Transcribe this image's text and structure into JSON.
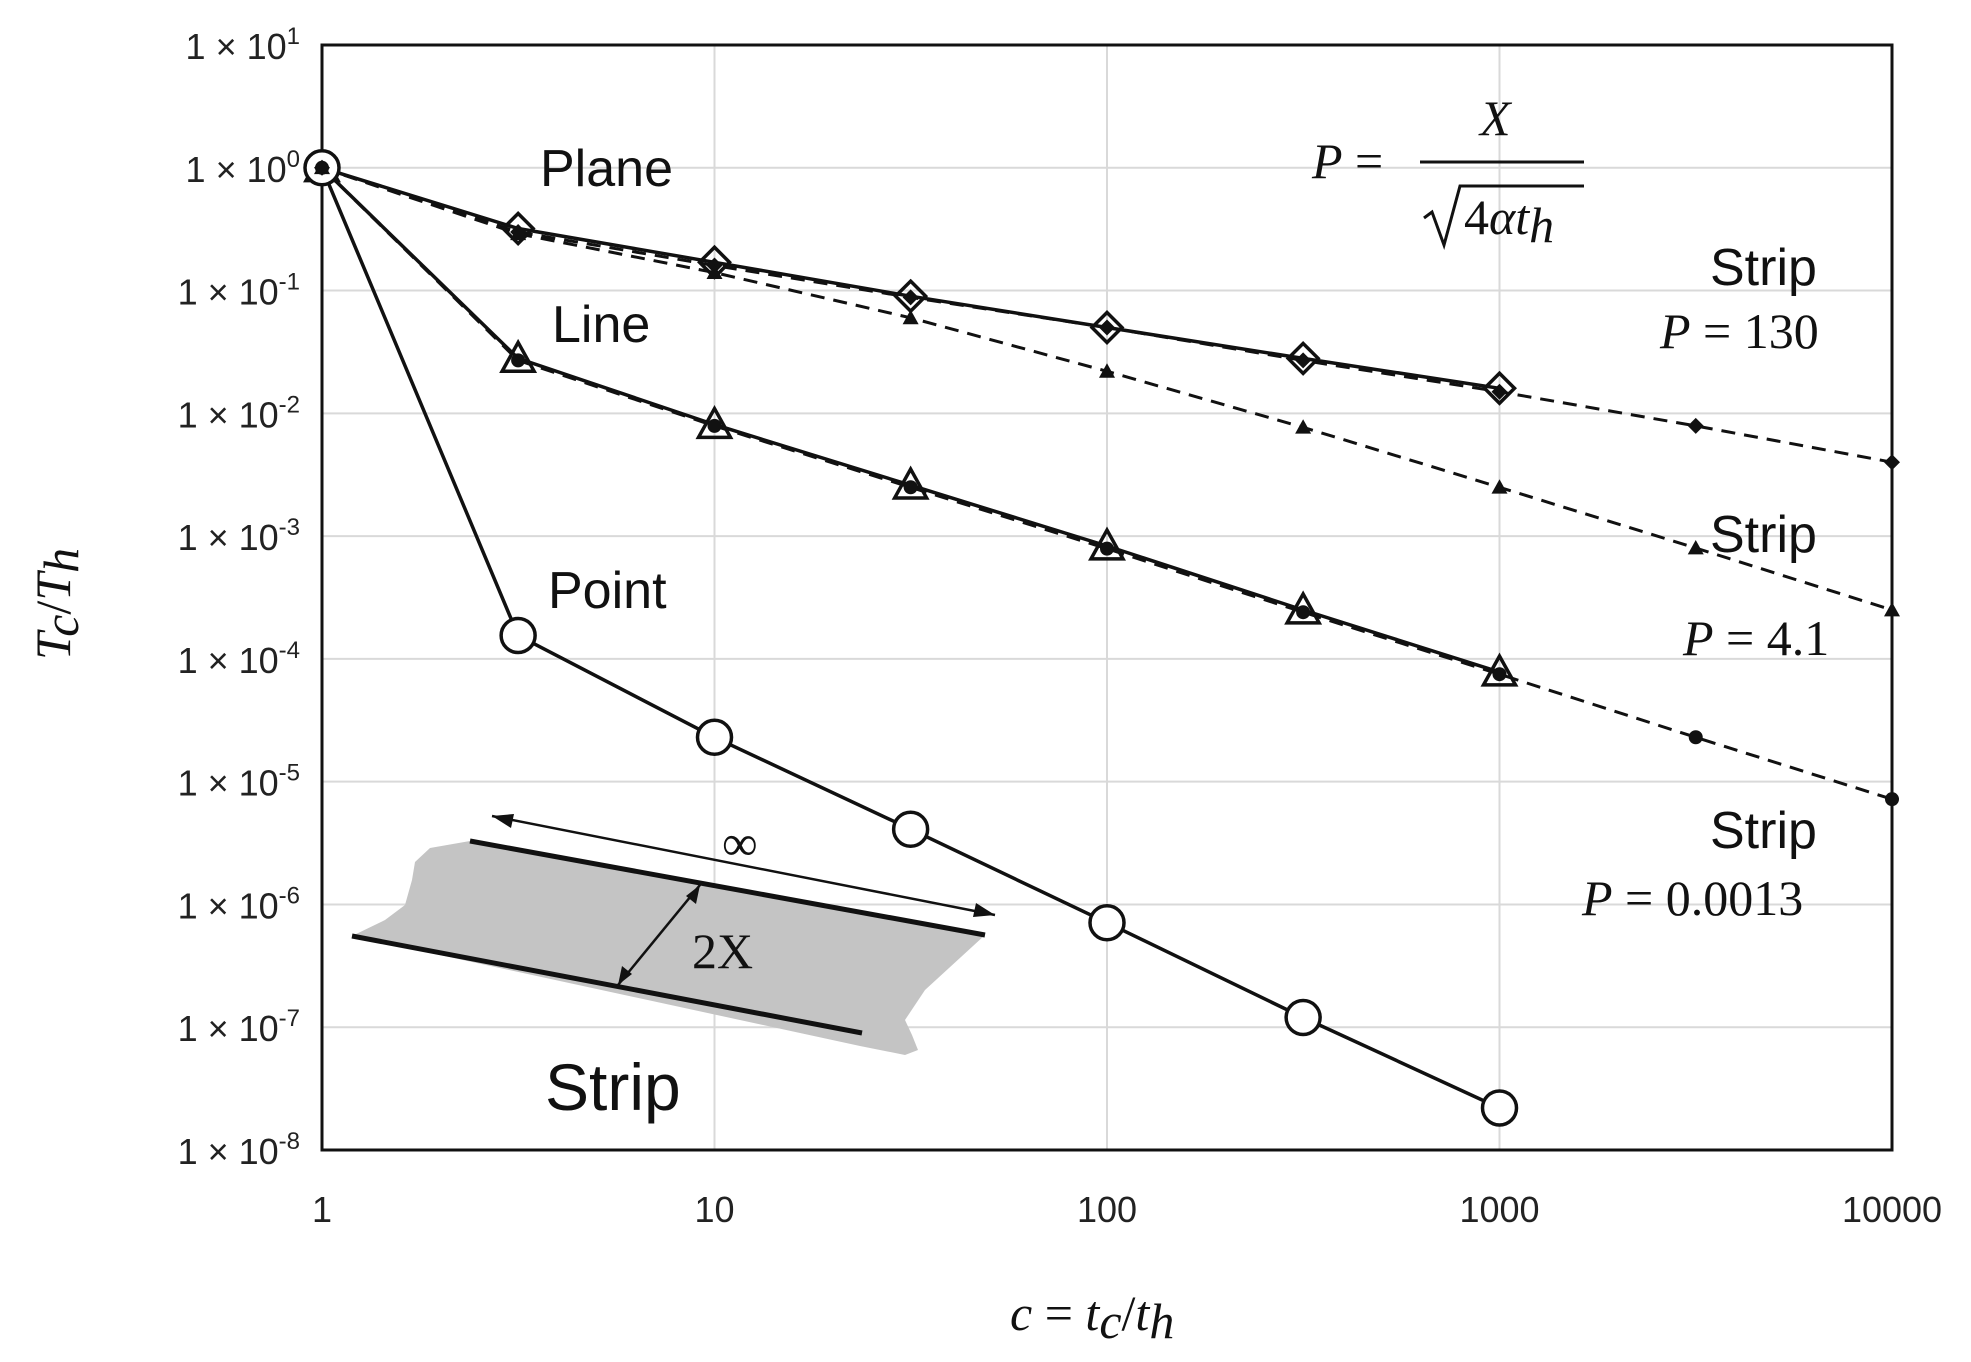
{
  "chart_data": {
    "type": "line",
    "xscale": "log",
    "yscale": "log",
    "xlim": [
      1,
      10000
    ],
    "ylim": [
      1e-08,
      10
    ],
    "grid": true,
    "xlabel_parts": {
      "lhs": "c",
      "eq": " = ",
      "num": "t",
      "num_sub": "c",
      "slash": "/",
      "den": "t",
      "den_sub": "h"
    },
    "ylabel_parts": {
      "num": "T",
      "num_sub": "c",
      "slash": "/",
      "den": "T",
      "den_sub": "h"
    },
    "x_ticks": [
      {
        "value": 1,
        "label": "1"
      },
      {
        "value": 10,
        "label": "10"
      },
      {
        "value": 100,
        "label": "100"
      },
      {
        "value": 1000,
        "label": "1000"
      },
      {
        "value": 10000,
        "label": "10000"
      }
    ],
    "y_ticks": [
      {
        "value": 10,
        "mant": "1",
        "times": "×",
        "base": "10",
        "exp": "1"
      },
      {
        "value": 1,
        "mant": "1",
        "times": "×",
        "base": "10",
        "exp": "0"
      },
      {
        "value": 0.1,
        "mant": "1",
        "times": "×",
        "base": "10",
        "exp": "-1"
      },
      {
        "value": 0.01,
        "mant": "1",
        "times": "×",
        "base": "10",
        "exp": "-2"
      },
      {
        "value": 0.001,
        "mant": "1",
        "times": "×",
        "base": "10",
        "exp": "-3"
      },
      {
        "value": 0.0001,
        "mant": "1",
        "times": "×",
        "base": "10",
        "exp": "-4"
      },
      {
        "value": 1e-05,
        "mant": "1",
        "times": "×",
        "base": "10",
        "exp": "-5"
      },
      {
        "value": 1e-06,
        "mant": "1",
        "times": "×",
        "base": "10",
        "exp": "-6"
      },
      {
        "value": 1e-07,
        "mant": "1",
        "times": "×",
        "base": "10",
        "exp": "-7"
      },
      {
        "value": 1e-08,
        "mant": "1",
        "times": "×",
        "base": "10",
        "exp": "-8"
      }
    ],
    "series": [
      {
        "style": "solid",
        "marker": "open-diamond",
        "x": [
          1,
          3.16,
          10,
          31.6,
          100,
          316,
          1000
        ],
        "y": [
          1,
          0.32,
          0.17,
          0.09,
          0.05,
          0.028,
          0.016
        ]
      },
      {
        "style": "solid",
        "marker": "open-triangle",
        "x": [
          1,
          3.16,
          10,
          31.6,
          100,
          316,
          1000
        ],
        "y": [
          1,
          0.028,
          0.0081,
          0.0026,
          0.00083,
          0.00025,
          7.8e-05
        ]
      },
      {
        "style": "solid",
        "marker": "open-circle",
        "x": [
          1,
          3.16,
          10,
          31.6,
          100,
          316,
          1000
        ],
        "y": [
          1,
          0.000155,
          2.3e-05,
          4.1e-06,
          7.1e-07,
          1.2e-07,
          2.2e-08
        ]
      },
      {
        "style": "dashed",
        "marker": "small-diamond",
        "x": [
          1,
          3.16,
          10,
          31.6,
          100,
          316,
          1000,
          3162,
          10000
        ],
        "y": [
          1,
          0.3,
          0.16,
          0.088,
          0.05,
          0.027,
          0.015,
          0.0079,
          0.004
        ]
      },
      {
        "style": "dashed",
        "marker": "small-triangle",
        "x": [
          1,
          3.16,
          10,
          31.6,
          100,
          316,
          1000,
          3162,
          10000
        ],
        "y": [
          1,
          0.29,
          0.14,
          0.06,
          0.022,
          0.0077,
          0.0025,
          0.0008,
          0.00025
        ]
      },
      {
        "style": "dashed",
        "marker": "small-dot",
        "x": [
          1,
          3.16,
          10,
          31.6,
          100,
          316,
          1000,
          3162,
          10000
        ],
        "y": [
          1,
          0.027,
          0.0079,
          0.0025,
          0.00079,
          0.00024,
          7.5e-05,
          2.3e-05,
          7.2e-06
        ]
      }
    ],
    "annotations": {
      "plane": "Plane",
      "line": "Line",
      "point": "Point",
      "strip_big": "Strip",
      "strip1": "Strip",
      "p1": {
        "p": "P",
        "eq": " = ",
        "val": "130"
      },
      "strip2": "Strip",
      "p2": {
        "p": "P",
        "eq": " = ",
        "val": "4.1"
      },
      "strip3": "Strip",
      "p3": {
        "p": "P",
        "eq": " = ",
        "val": "0.0013"
      },
      "formula": {
        "lhs": "P",
        "eq": " = ",
        "num": "X",
        "rad_n": "4",
        "rad_a": "α",
        "rad_t": "t",
        "rad_sub": "h"
      },
      "inset": {
        "width": "2X",
        "infinity": "∞"
      }
    }
  }
}
